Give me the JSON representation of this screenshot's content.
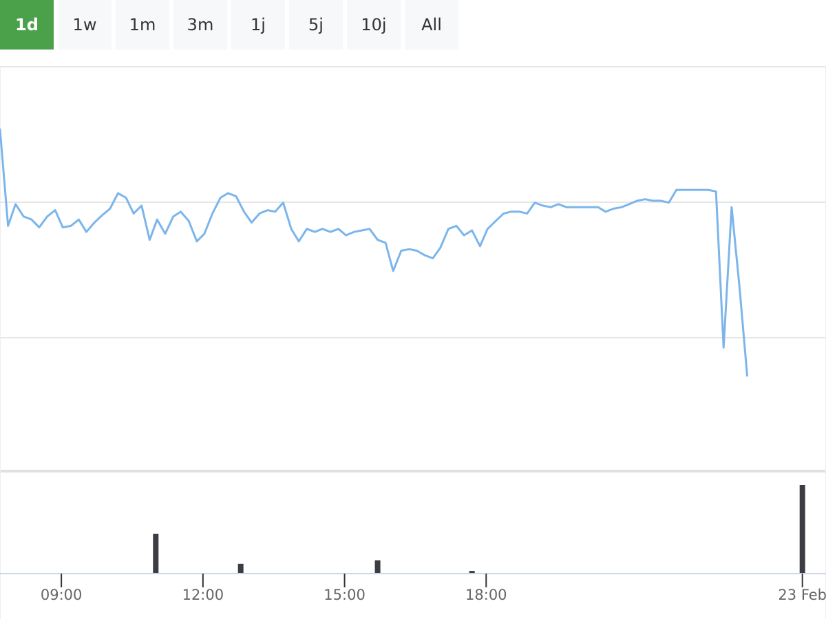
{
  "range_selector": {
    "buttons": [
      "1d",
      "1w",
      "1m",
      "3m",
      "1j",
      "5j",
      "10j",
      "All"
    ],
    "active_index": 0,
    "active_color": "#4aa14a"
  },
  "chart_data": {
    "type": "line",
    "line_color": "#7cb5ec",
    "volume_color": "#3c3c44",
    "grid": true,
    "x_ticks": [
      {
        "label": "09:00",
        "hours": 9
      },
      {
        "label": "12:00",
        "hours": 12
      },
      {
        "label": "15:00",
        "hours": 15
      },
      {
        "label": "18:00",
        "hours": 18
      },
      {
        "label": "23 Feb",
        "hours": 24.7
      }
    ],
    "x_range_hours": [
      7.7,
      25.2
    ],
    "price": {
      "ylim": [
        0,
        100
      ],
      "points": [
        [
          7.7,
          79.3
        ],
        [
          7.87,
          47.4
        ],
        [
          8.03,
          54.6
        ],
        [
          8.2,
          50.5
        ],
        [
          8.37,
          49.5
        ],
        [
          8.53,
          46.9
        ],
        [
          8.7,
          50.5
        ],
        [
          8.87,
          52.6
        ],
        [
          9.03,
          46.9
        ],
        [
          9.2,
          47.4
        ],
        [
          9.37,
          49.5
        ],
        [
          9.53,
          45.4
        ],
        [
          9.7,
          48.5
        ],
        [
          9.87,
          51.0
        ],
        [
          10.03,
          53.1
        ],
        [
          10.2,
          58.2
        ],
        [
          10.37,
          56.7
        ],
        [
          10.53,
          51.5
        ],
        [
          10.7,
          54.1
        ],
        [
          10.87,
          42.8
        ],
        [
          11.03,
          49.5
        ],
        [
          11.2,
          44.8
        ],
        [
          11.37,
          50.5
        ],
        [
          11.53,
          52.1
        ],
        [
          11.7,
          49.0
        ],
        [
          11.87,
          42.3
        ],
        [
          12.03,
          44.8
        ],
        [
          12.2,
          51.5
        ],
        [
          12.37,
          56.7
        ],
        [
          12.53,
          58.2
        ],
        [
          12.7,
          57.2
        ],
        [
          12.87,
          52.1
        ],
        [
          13.03,
          48.5
        ],
        [
          13.2,
          51.5
        ],
        [
          13.37,
          52.6
        ],
        [
          13.53,
          52.1
        ],
        [
          13.7,
          55.1
        ],
        [
          13.87,
          46.4
        ],
        [
          14.03,
          42.3
        ],
        [
          14.2,
          46.4
        ],
        [
          14.37,
          45.4
        ],
        [
          14.53,
          46.4
        ],
        [
          14.7,
          45.4
        ],
        [
          14.87,
          46.4
        ],
        [
          15.03,
          44.3
        ],
        [
          15.2,
          45.4
        ],
        [
          15.37,
          45.9
        ],
        [
          15.53,
          46.4
        ],
        [
          15.7,
          42.8
        ],
        [
          15.87,
          41.8
        ],
        [
          16.03,
          32.5
        ],
        [
          16.2,
          39.2
        ],
        [
          16.37,
          39.7
        ],
        [
          16.53,
          39.2
        ],
        [
          16.7,
          37.7
        ],
        [
          16.87,
          36.7
        ],
        [
          17.03,
          40.2
        ],
        [
          17.2,
          46.4
        ],
        [
          17.37,
          47.4
        ],
        [
          17.53,
          44.3
        ],
        [
          17.7,
          45.9
        ],
        [
          17.87,
          40.7
        ],
        [
          18.03,
          46.4
        ],
        [
          18.2,
          49.0
        ],
        [
          18.37,
          51.5
        ],
        [
          18.53,
          52.1
        ],
        [
          18.7,
          52.1
        ],
        [
          18.87,
          51.5
        ],
        [
          19.03,
          55.1
        ],
        [
          19.2,
          54.1
        ],
        [
          19.37,
          53.6
        ],
        [
          19.53,
          54.6
        ],
        [
          19.7,
          53.6
        ],
        [
          19.87,
          53.6
        ],
        [
          20.03,
          53.6
        ],
        [
          20.2,
          53.6
        ],
        [
          20.37,
          53.6
        ],
        [
          20.53,
          52.1
        ],
        [
          20.7,
          53.1
        ],
        [
          20.87,
          53.6
        ],
        [
          21.03,
          54.6
        ],
        [
          21.2,
          55.7
        ],
        [
          21.37,
          56.2
        ],
        [
          21.53,
          55.7
        ],
        [
          21.7,
          55.7
        ],
        [
          21.87,
          55.1
        ],
        [
          22.03,
          59.3
        ],
        [
          22.2,
          59.3
        ],
        [
          22.37,
          59.3
        ],
        [
          22.53,
          59.3
        ],
        [
          22.7,
          59.3
        ],
        [
          22.87,
          58.8
        ],
        [
          23.03,
          7.2
        ],
        [
          23.2,
          53.6
        ],
        [
          23.37,
          26.8
        ],
        [
          23.53,
          -2.1
        ]
      ]
    },
    "volume": {
      "ylim": [
        0,
        100
      ],
      "bars": [
        [
          11.0,
          45
        ],
        [
          12.8,
          11
        ],
        [
          15.7,
          15
        ],
        [
          17.7,
          3
        ],
        [
          24.7,
          100
        ]
      ]
    }
  }
}
